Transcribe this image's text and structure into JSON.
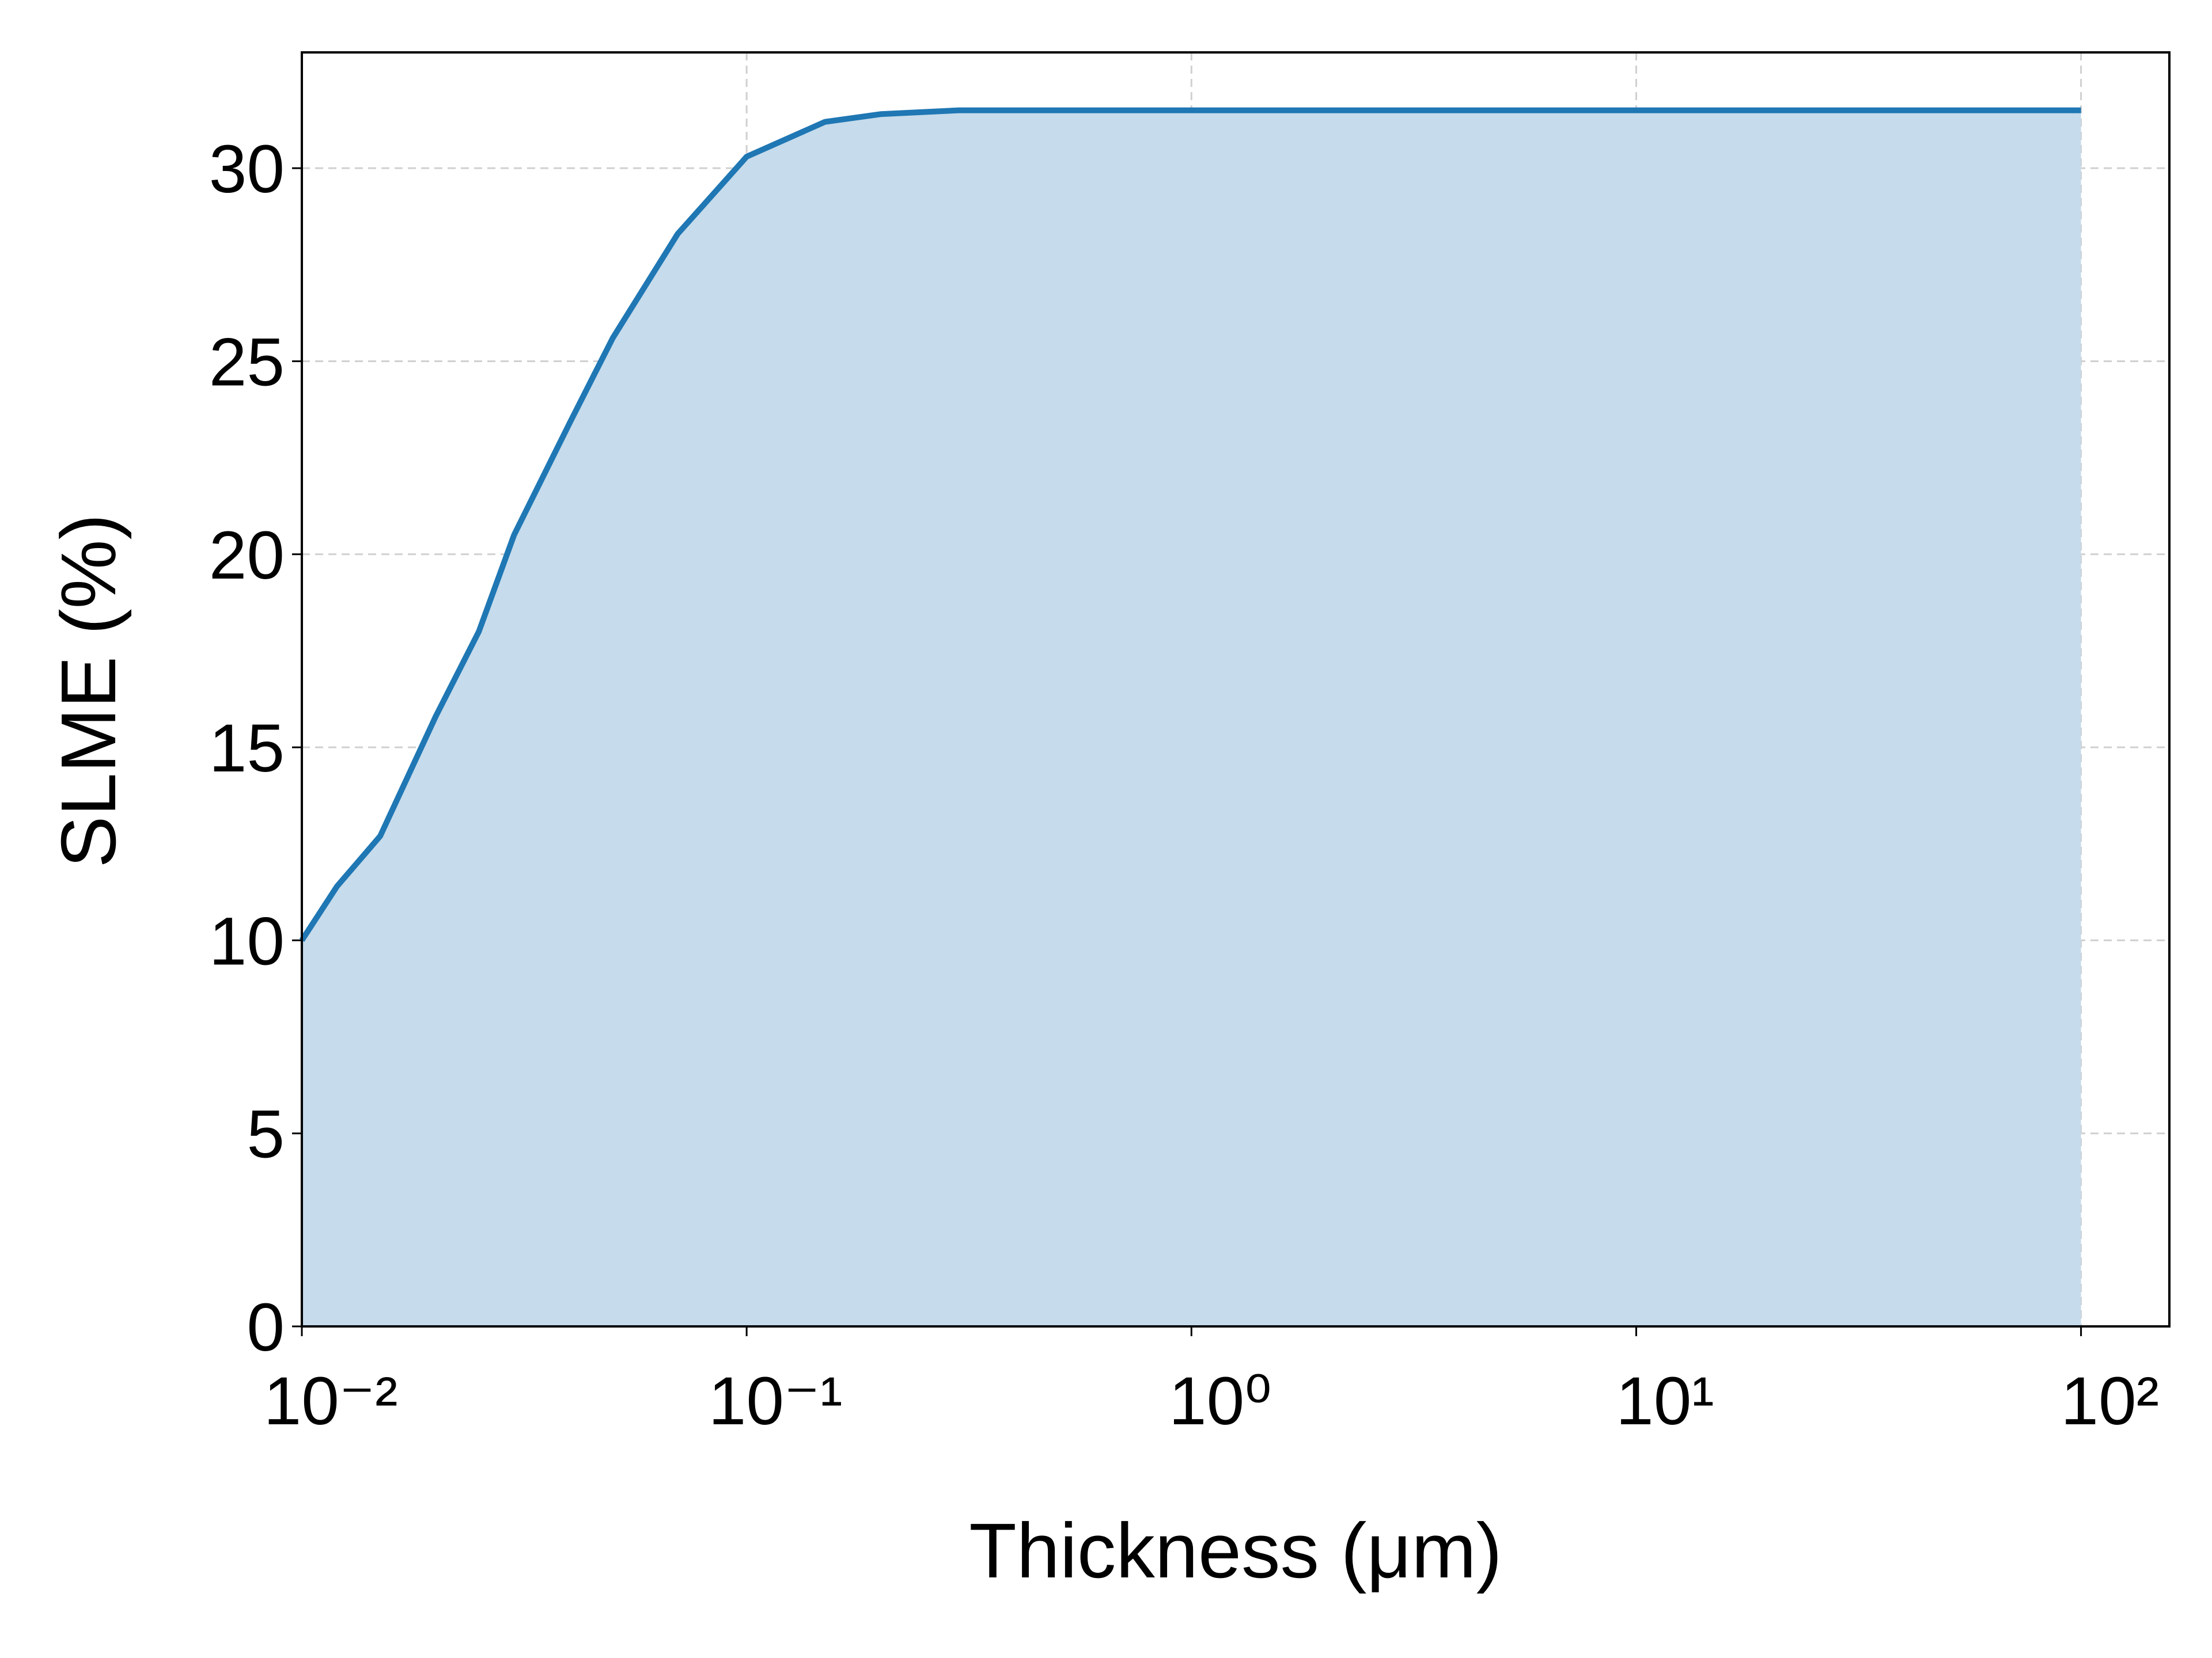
{
  "chart_data": {
    "type": "line",
    "x_label": "Thickness (μm)",
    "y_label": "SLME (%)",
    "x": [
      0.01,
      0.012,
      0.015,
      0.02,
      0.025,
      0.03,
      0.04,
      0.05,
      0.07,
      0.1,
      0.15,
      0.2,
      0.3,
      0.5,
      1,
      10,
      100
    ],
    "series": [
      {
        "color": "#1f77b4",
        "fill": "#c6dbeb",
        "values": [
          10.0,
          11.4,
          12.7,
          15.8,
          18.0,
          20.5,
          23.4,
          25.6,
          28.3,
          30.3,
          31.2,
          31.4,
          31.5,
          31.5,
          31.5,
          31.5,
          31.5
        ]
      }
    ],
    "xscale": "log",
    "xlim": [
      0.01,
      158
    ],
    "ylim": [
      0,
      33
    ],
    "xticks": [
      {
        "value": 0.01,
        "label": "10⁻²"
      },
      {
        "value": 0.1,
        "label": "10⁻¹"
      },
      {
        "value": 1,
        "label": "10⁰"
      },
      {
        "value": 10,
        "label": "10¹"
      },
      {
        "value": 100,
        "label": "10²"
      }
    ],
    "yticks": [
      0,
      5,
      10,
      15,
      20,
      25,
      30
    ],
    "grid": true
  }
}
